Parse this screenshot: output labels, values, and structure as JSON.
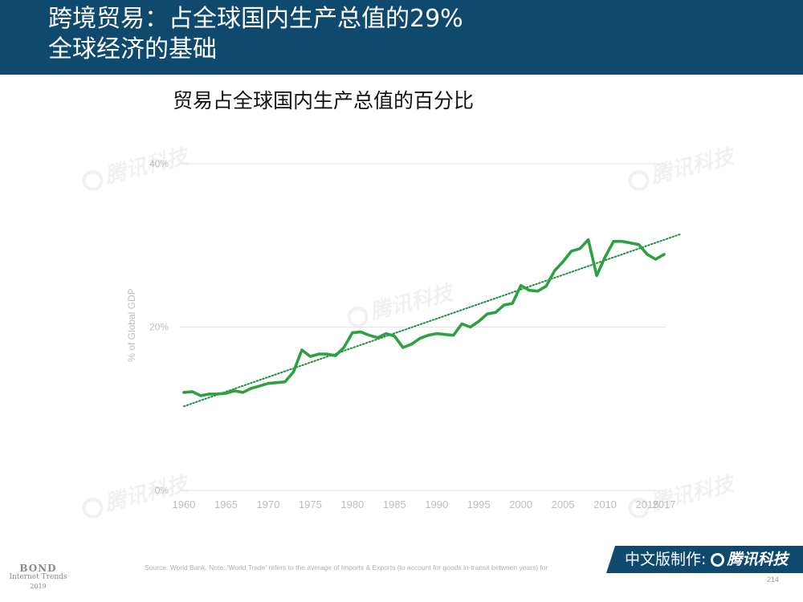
{
  "header": {
    "title_line1": "跨境贸易：占全球国内生产总值的29%",
    "title_line2": "全球经济的基础"
  },
  "watermark": {
    "text": "腾讯科技"
  },
  "footer": {
    "bond_line1": "BOND",
    "bond_line2": "Internet Trends",
    "bond_line3": "2019",
    "source": "Source: World Bank. Note: 'World Trade' refers to the average of Imports & Exports (to account for goods in-transit between years) for",
    "credit_label": "中文版制作:",
    "credit_brand": "腾讯科技",
    "page_number": "214"
  },
  "colors": {
    "header_bg": "#0f4a6e",
    "line": "#2ea043",
    "trend": "#1f8f3a",
    "grid": "#e3e3e3",
    "axis_text": "#bdbdbd"
  },
  "chart_data": {
    "type": "line",
    "title": "贸易占全球国内生产总值的百分比",
    "xlabel": "",
    "ylabel": "% of  Global GDP",
    "xlim": [
      1960,
      2017
    ],
    "ylim": [
      0,
      40
    ],
    "grid": true,
    "legend": "none",
    "x_tick_labels": [
      "1960",
      "1965",
      "1970",
      "1975",
      "1980",
      "1985",
      "1990",
      "1995",
      "2000",
      "2005",
      "2010",
      "2015",
      "2017"
    ],
    "y_tick_labels": [
      "0%",
      "20%",
      "40%"
    ],
    "x": [
      1960,
      1961,
      1962,
      1963,
      1964,
      1965,
      1966,
      1967,
      1968,
      1969,
      1970,
      1971,
      1972,
      1973,
      1974,
      1975,
      1976,
      1977,
      1978,
      1979,
      1980,
      1981,
      1982,
      1983,
      1984,
      1985,
      1986,
      1987,
      1988,
      1989,
      1990,
      1991,
      1992,
      1993,
      1994,
      1995,
      1996,
      1997,
      1998,
      1999,
      2000,
      2001,
      2002,
      2003,
      2004,
      2005,
      2006,
      2007,
      2008,
      2009,
      2010,
      2011,
      2012,
      2013,
      2014,
      2015,
      2016,
      2017
    ],
    "series": [
      {
        "values": [
          12.0,
          12.1,
          11.6,
          11.8,
          11.8,
          11.9,
          12.2,
          12.0,
          12.5,
          12.8,
          13.1,
          13.2,
          13.3,
          14.5,
          17.2,
          16.4,
          16.7,
          16.7,
          16.5,
          17.5,
          19.3,
          19.4,
          19.0,
          18.7,
          19.2,
          18.9,
          17.5,
          17.9,
          18.6,
          19.0,
          19.2,
          19.1,
          19.0,
          20.4,
          20.0,
          20.7,
          21.6,
          21.8,
          22.7,
          22.9,
          25.1,
          24.5,
          24.4,
          25.0,
          26.9,
          28.0,
          29.3,
          29.6,
          30.7,
          26.3,
          28.6,
          30.5,
          30.5,
          30.3,
          30.1,
          28.9,
          28.3,
          28.9
        ]
      }
    ],
    "trendline": {
      "style": "dotted",
      "x": [
        1960,
        2019
      ],
      "y": [
        10.3,
        31.4
      ]
    }
  }
}
